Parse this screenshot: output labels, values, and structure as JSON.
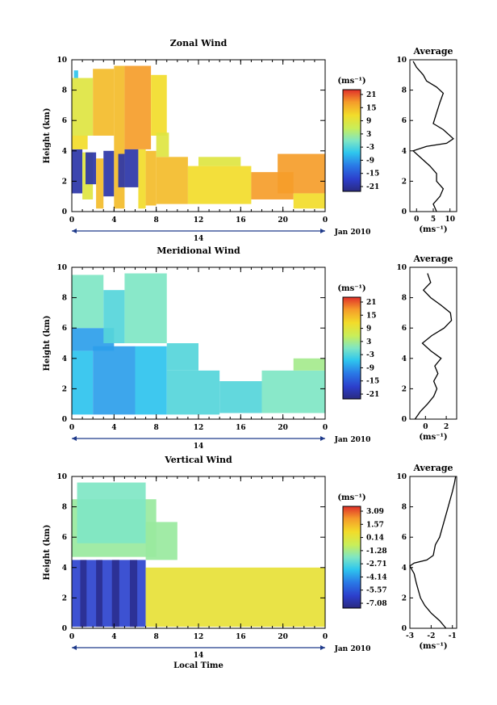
{
  "chart_data": [
    {
      "type": "heatmap",
      "title": "Zonal Wind",
      "ylabel": "Height (km)",
      "xticks": [
        "0",
        "4",
        "8",
        "12",
        "16",
        "20",
        "0"
      ],
      "yticks": [
        "0",
        "2",
        "4",
        "6",
        "8",
        "10"
      ],
      "xlim": [
        0,
        24
      ],
      "ylim": [
        0,
        10
      ],
      "date_label": "Jan 2010",
      "day_label": "14",
      "colorbar": {
        "unit": "(ms⁻¹)",
        "ticks": [
          "21",
          "15",
          "9",
          "3",
          "-3",
          "-9",
          "-15",
          "-21"
        ],
        "range": [
          -24,
          24
        ]
      },
      "cells": [
        {
          "t0": 0.0,
          "t1": 1.0,
          "h0": 1.2,
          "h1": 4.1,
          "v": -21
        },
        {
          "t0": 0.0,
          "t1": 1.5,
          "h0": 4.1,
          "h1": 5.0,
          "v": 12
        },
        {
          "t0": 0.0,
          "t1": 2.0,
          "h0": 5.0,
          "h1": 8.8,
          "v": 9
        },
        {
          "t0": 0.2,
          "t1": 0.6,
          "h0": 8.8,
          "h1": 9.3,
          "v": -6
        },
        {
          "t0": 1.0,
          "t1": 2.0,
          "h0": 0.8,
          "h1": 3.9,
          "v": 9
        },
        {
          "t0": 1.3,
          "t1": 2.3,
          "h0": 1.8,
          "h1": 3.9,
          "v": -21
        },
        {
          "t0": 2.0,
          "t1": 4.0,
          "h0": 5.0,
          "h1": 9.4,
          "v": 15
        },
        {
          "t0": 2.3,
          "t1": 3.0,
          "h0": 0.2,
          "h1": 3.5,
          "v": 15
        },
        {
          "t0": 3.0,
          "t1": 4.0,
          "h0": 1.0,
          "h1": 4.0,
          "v": -21
        },
        {
          "t0": 4.0,
          "t1": 5.0,
          "h0": 0.2,
          "h1": 9.6,
          "v": 15
        },
        {
          "t0": 4.4,
          "t1": 5.0,
          "h0": 1.6,
          "h1": 3.8,
          "v": -21
        },
        {
          "t0": 5.0,
          "t1": 7.5,
          "h0": 4.1,
          "h1": 9.6,
          "v": 18
        },
        {
          "t0": 5.0,
          "t1": 6.3,
          "h0": 1.6,
          "h1": 4.1,
          "v": -21
        },
        {
          "t0": 6.3,
          "t1": 7.0,
          "h0": 0.2,
          "h1": 4.1,
          "v": 12
        },
        {
          "t0": 7.0,
          "t1": 8.0,
          "h0": 0.4,
          "h1": 4.0,
          "v": 15
        },
        {
          "t0": 7.5,
          "t1": 9.0,
          "h0": 5.0,
          "h1": 9.0,
          "v": 12
        },
        {
          "t0": 8.0,
          "t1": 11.0,
          "h0": 0.5,
          "h1": 3.6,
          "v": 15
        },
        {
          "t0": 8.0,
          "t1": 9.2,
          "h0": 3.6,
          "h1": 5.2,
          "v": 9
        },
        {
          "t0": 11.0,
          "t1": 17.0,
          "h0": 0.5,
          "h1": 3.0,
          "v": 12
        },
        {
          "t0": 17.0,
          "t1": 21.0,
          "h0": 0.8,
          "h1": 2.6,
          "v": 18
        },
        {
          "t0": 19.5,
          "t1": 24.0,
          "h0": 1.2,
          "h1": 3.8,
          "v": 18
        },
        {
          "t0": 21.0,
          "t1": 24.0,
          "h0": 0.2,
          "h1": 1.2,
          "v": 12
        },
        {
          "t0": 12.0,
          "t1": 16.0,
          "h0": 3.0,
          "h1": 3.6,
          "v": 9
        }
      ],
      "profile": {
        "title": "Average",
        "xlabel": "(ms⁻¹)",
        "xticks": [
          "0",
          "5",
          "10"
        ],
        "xlim": [
          -2,
          12
        ],
        "points": [
          [
            6,
            0
          ],
          [
            5,
            0.5
          ],
          [
            7,
            1
          ],
          [
            8,
            1.5
          ],
          [
            6,
            2
          ],
          [
            6,
            2.5
          ],
          [
            4,
            3
          ],
          [
            2,
            3.4
          ],
          [
            0,
            3.8
          ],
          [
            -1,
            4
          ],
          [
            3,
            4.3
          ],
          [
            9,
            4.5
          ],
          [
            11,
            4.8
          ],
          [
            8,
            5.4
          ],
          [
            5,
            5.8
          ],
          [
            6,
            6.5
          ],
          [
            7,
            7.2
          ],
          [
            8,
            7.8
          ],
          [
            6,
            8.2
          ],
          [
            3,
            8.6
          ],
          [
            2,
            9
          ],
          [
            0,
            9.5
          ],
          [
            -1,
            9.9
          ]
        ]
      }
    },
    {
      "type": "heatmap",
      "title": "Meridional Wind",
      "ylabel": "Height (km)",
      "xticks": [
        "0",
        "4",
        "8",
        "12",
        "16",
        "20",
        "0"
      ],
      "yticks": [
        "0",
        "2",
        "4",
        "6",
        "8",
        "10"
      ],
      "xlim": [
        0,
        24
      ],
      "ylim": [
        0,
        10
      ],
      "date_label": "Jan 2010",
      "day_label": "14",
      "colorbar": {
        "unit": "(ms⁻¹)",
        "ticks": [
          "21",
          "15",
          "9",
          "3",
          "-3",
          "-9",
          "-15",
          "-21"
        ],
        "range": [
          -24,
          24
        ]
      },
      "cells": [
        {
          "t0": 0.0,
          "t1": 2.0,
          "h0": 0.3,
          "h1": 4.5,
          "v": -6
        },
        {
          "t0": 0.0,
          "t1": 4.0,
          "h0": 4.5,
          "h1": 6.0,
          "v": -9
        },
        {
          "t0": 0.0,
          "t1": 3.0,
          "h0": 6.0,
          "h1": 9.5,
          "v": 0
        },
        {
          "t0": 2.0,
          "t1": 6.0,
          "h0": 0.3,
          "h1": 4.8,
          "v": -9
        },
        {
          "t0": 3.0,
          "t1": 5.0,
          "h0": 5.0,
          "h1": 8.5,
          "v": -3
        },
        {
          "t0": 5.0,
          "t1": 9.0,
          "h0": 5.0,
          "h1": 9.6,
          "v": 0
        },
        {
          "t0": 6.0,
          "t1": 9.0,
          "h0": 0.3,
          "h1": 4.8,
          "v": -6
        },
        {
          "t0": 9.0,
          "t1": 14.0,
          "h0": 0.3,
          "h1": 3.2,
          "v": -3
        },
        {
          "t0": 14.0,
          "t1": 18.0,
          "h0": 0.4,
          "h1": 2.5,
          "v": -3
        },
        {
          "t0": 18.0,
          "t1": 24.0,
          "h0": 0.4,
          "h1": 3.2,
          "v": 0
        },
        {
          "t0": 21.0,
          "t1": 24.0,
          "h0": 3.2,
          "h1": 4.0,
          "v": 3
        },
        {
          "t0": 9.0,
          "t1": 12.0,
          "h0": 3.2,
          "h1": 5.0,
          "v": -3
        }
      ],
      "profile": {
        "title": "Average",
        "xlabel": "(ms⁻¹)",
        "xticks": [
          "0",
          "2"
        ],
        "xlim": [
          -1.5,
          3
        ],
        "points": [
          [
            -1,
            0
          ],
          [
            -0.5,
            0.5
          ],
          [
            0.2,
            1
          ],
          [
            0.8,
            1.5
          ],
          [
            1.1,
            2
          ],
          [
            0.8,
            2.5
          ],
          [
            1.2,
            3
          ],
          [
            0.9,
            3.5
          ],
          [
            1.5,
            4
          ],
          [
            0.5,
            4.5
          ],
          [
            -0.3,
            5
          ],
          [
            0.6,
            5.5
          ],
          [
            1.8,
            6
          ],
          [
            2.5,
            6.5
          ],
          [
            2.4,
            7
          ],
          [
            1.5,
            7.5
          ],
          [
            0.5,
            8
          ],
          [
            -0.2,
            8.5
          ],
          [
            0.5,
            9
          ],
          [
            0.2,
            9.6
          ]
        ]
      }
    },
    {
      "type": "heatmap",
      "title": "Vertical Wind",
      "ylabel": "Height (km)",
      "xlabel": "Local Time",
      "xticks": [
        "0",
        "4",
        "8",
        "12",
        "16",
        "20",
        "0"
      ],
      "yticks": [
        "0",
        "2",
        "4",
        "6",
        "8",
        "10"
      ],
      "xlim": [
        0,
        24
      ],
      "ylim": [
        0,
        10
      ],
      "date_label": "Jan 2010",
      "day_label": "14",
      "colorbar": {
        "unit": "(ms⁻¹)",
        "ticks": [
          "3.09",
          "1.57",
          "0.14",
          "-1.28",
          "-2.71",
          "-4.14",
          "-5.57",
          "-7.08"
        ],
        "range": [
          -7.8,
          3.8
        ]
      },
      "cells": [
        {
          "t0": 0.0,
          "t1": 7.0,
          "h0": 0.1,
          "h1": 4.5,
          "v": -6.3
        },
        {
          "t0": 0.8,
          "t1": 1.4,
          "h0": 0.1,
          "h1": 4.5,
          "v": -7.5
        },
        {
          "t0": 2.3,
          "t1": 2.9,
          "h0": 0.1,
          "h1": 4.5,
          "v": -7.5
        },
        {
          "t0": 3.8,
          "t1": 4.5,
          "h0": 0.1,
          "h1": 4.5,
          "v": -7.5
        },
        {
          "t0": 5.5,
          "t1": 6.2,
          "h0": 0.1,
          "h1": 4.5,
          "v": -7.5
        },
        {
          "t0": 0.0,
          "t1": 8.0,
          "h0": 4.7,
          "h1": 8.5,
          "v": -1.5
        },
        {
          "t0": 0.5,
          "t1": 7.0,
          "h0": 5.6,
          "h1": 9.6,
          "v": -2.0
        },
        {
          "t0": 7.0,
          "t1": 10.0,
          "h0": 4.5,
          "h1": 7.0,
          "v": -1.5
        },
        {
          "t0": 7.0,
          "t1": 24.0,
          "h0": 0.1,
          "h1": 4.0,
          "v": 0.5
        }
      ],
      "profile": {
        "title": "Average",
        "xlabel": "(ms⁻¹)",
        "xticks": [
          "-3",
          "-2",
          "-1"
        ],
        "xlim": [
          -3,
          -0.8
        ],
        "points": [
          [
            -1.3,
            0
          ],
          [
            -1.6,
            0.5
          ],
          [
            -2.0,
            1
          ],
          [
            -2.3,
            1.5
          ],
          [
            -2.5,
            2
          ],
          [
            -2.6,
            2.5
          ],
          [
            -2.7,
            3
          ],
          [
            -2.8,
            3.6
          ],
          [
            -3.0,
            4.1
          ],
          [
            -2.8,
            4.3
          ],
          [
            -2.2,
            4.5
          ],
          [
            -1.9,
            4.8
          ],
          [
            -1.8,
            5.5
          ],
          [
            -1.6,
            6
          ],
          [
            -1.4,
            7
          ],
          [
            -1.2,
            8
          ],
          [
            -1.1,
            8.5
          ],
          [
            -1.0,
            9
          ],
          [
            -0.9,
            9.6
          ],
          [
            -0.85,
            10
          ]
        ]
      }
    }
  ]
}
